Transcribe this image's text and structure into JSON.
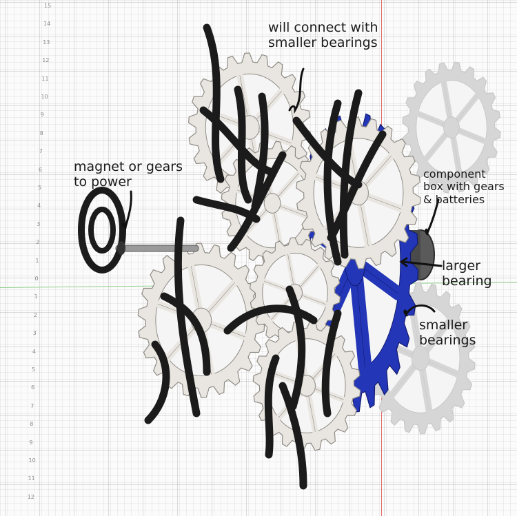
{
  "viewport": {
    "ruler_ticks": [
      "15",
      "14",
      "13",
      "12",
      "11",
      "10",
      "9",
      "8",
      "7",
      "6",
      "5",
      "4",
      "3",
      "2",
      "1",
      "0",
      "1",
      "2",
      "3",
      "4",
      "5",
      "6",
      "7",
      "8",
      "9",
      "10",
      "11",
      "12"
    ]
  },
  "annotations": {
    "top": {
      "line1": "will connect with",
      "line2": "smaller bearings"
    },
    "left": {
      "line1": "magnet or gears",
      "line2": "to power"
    },
    "component_box": {
      "line1": "component",
      "line2": "box with gears",
      "line3": "& batteries"
    },
    "larger_bearing": {
      "line1": "larger",
      "line2": "bearing"
    },
    "smaller_bearings": {
      "line1": "smaller",
      "line2": "bearings"
    }
  },
  "colors": {
    "gear_fill": "#e9e6e1",
    "gear_stroke": "#8f8b85",
    "blue_gear": "#2436b8",
    "blade": "#1b1b1b",
    "shadow": "#d6d6d6",
    "axis_x": "#e46a6a",
    "axis_y": "#8fcf8a"
  }
}
